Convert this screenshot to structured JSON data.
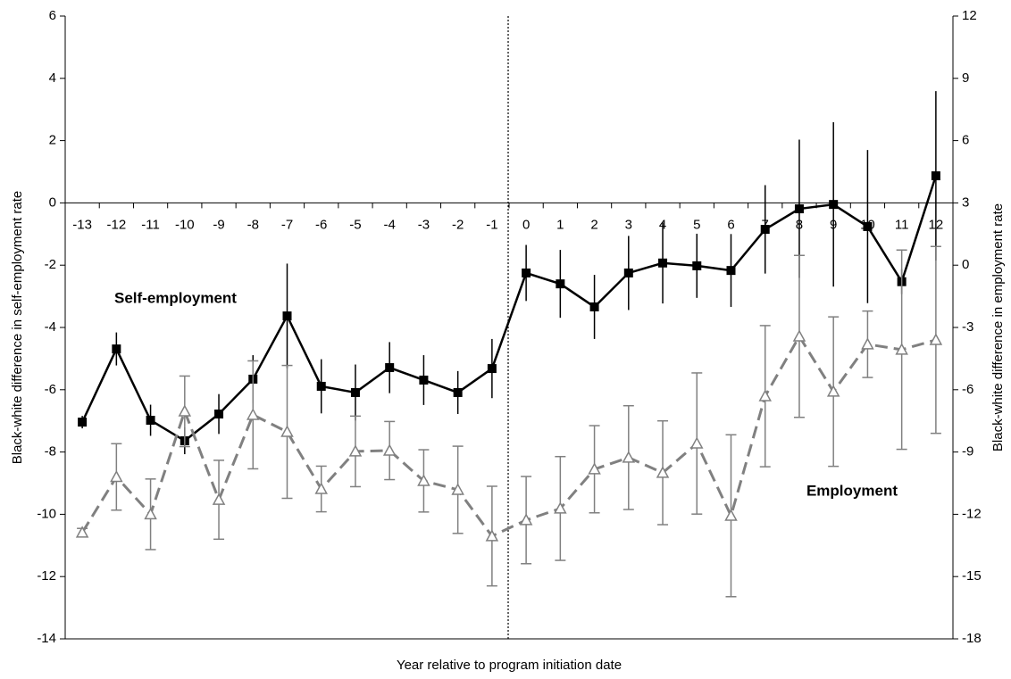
{
  "chart_data": {
    "type": "line",
    "x_label": "Year relative to program initiation date",
    "y_label": "Black-white difference in self-employment rate",
    "y2_label": "Black-white difference in employment rate",
    "categories": [
      -13,
      -12,
      -11,
      -10,
      -9,
      -8,
      -7,
      -6,
      -5,
      -4,
      -3,
      -2,
      -1,
      0,
      1,
      2,
      3,
      4,
      5,
      6,
      7,
      8,
      9,
      10,
      11,
      12
    ],
    "ylim": [
      -14,
      6
    ],
    "yticks": [
      -14,
      -12,
      -10,
      -8,
      -6,
      -4,
      -2,
      0,
      2,
      4,
      6
    ],
    "y2lim": [
      -18,
      12
    ],
    "y2ticks": [
      -18,
      -15,
      -12,
      -9,
      -6,
      -3,
      0,
      3,
      6,
      9,
      12
    ],
    "series": [
      {
        "name": "Self-employment",
        "color": "#000000",
        "marker": "square",
        "axis": "y",
        "values": [
          -7.04,
          -4.69,
          -6.98,
          -7.64,
          -6.78,
          -5.66,
          -3.63,
          -5.89,
          -6.09,
          -5.29,
          -5.69,
          -6.09,
          -5.32,
          -2.25,
          -2.6,
          -3.34,
          -2.25,
          -1.93,
          -2.02,
          -2.17,
          -0.85,
          -0.19,
          -0.05,
          -0.76,
          -2.53,
          0.87
        ],
        "errors": [
          0.2,
          0.53,
          0.5,
          0.43,
          0.64,
          0.77,
          1.68,
          0.87,
          0.9,
          0.82,
          0.8,
          0.69,
          0.95,
          0.9,
          1.09,
          1.03,
          1.19,
          1.3,
          1.03,
          1.17,
          1.42,
          2.22,
          2.64,
          2.46,
          0.4,
          2.72
        ]
      },
      {
        "name": "Employment",
        "color": "#808080",
        "marker": "triangle",
        "axis": "y2",
        "values": [
          -12.88,
          -10.2,
          -12.0,
          -7.04,
          -11.3,
          -7.21,
          -8.03,
          -10.78,
          -8.97,
          -8.93,
          -10.39,
          -10.82,
          -13.05,
          -12.28,
          -11.72,
          -9.83,
          -9.27,
          -10.0,
          -8.59,
          -12.07,
          -6.31,
          -3.43,
          -6.09,
          -3.81,
          -4.07,
          -3.6
        ],
        "errors": [
          0.2,
          1.6,
          1.7,
          1.7,
          1.9,
          2.6,
          3.2,
          1.1,
          1.7,
          1.4,
          1.5,
          2.1,
          2.4,
          2.1,
          2.5,
          2.1,
          2.5,
          2.5,
          3.4,
          3.9,
          3.4,
          3.9,
          3.6,
          1.6,
          4.8,
          4.5
        ]
      }
    ]
  }
}
